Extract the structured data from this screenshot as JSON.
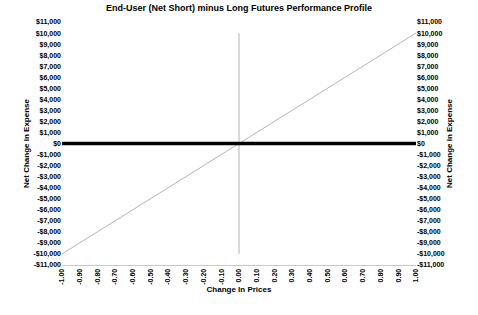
{
  "chart_data": {
    "type": "line",
    "title": "End-User (Net Short) minus Long Futures Performance Profile",
    "x_label": "Change In Prices",
    "y_label": "Net Change In Expense",
    "y2_label": "Net Change In Expense",
    "x": [
      -1.0,
      -0.9,
      -0.8,
      -0.7,
      -0.6,
      -0.5,
      -0.4,
      -0.3,
      -0.2,
      -0.1,
      0.0,
      0.1,
      0.2,
      0.3,
      0.4,
      0.5,
      0.6,
      0.7,
      0.8,
      0.9,
      1.0
    ],
    "series": [
      {
        "color": "#b4b4b4",
        "line_style": "solid",
        "values": [
          -10000,
          -9000,
          -8000,
          -7000,
          -6000,
          -5000,
          -4000,
          -3000,
          -2000,
          -1000,
          0,
          1000,
          2000,
          3000,
          4000,
          5000,
          6000,
          7000,
          8000,
          9000,
          10000
        ]
      },
      {
        "color": "#b4b4b4",
        "line_style": "solid",
        "x": [
          0.0,
          0.0
        ],
        "values": [
          -10000,
          10000
        ]
      },
      {
        "color": "#000000",
        "line_style": "thick",
        "axis": "y2",
        "values": [
          0,
          0,
          0,
          0,
          0,
          0,
          0,
          0,
          0,
          0,
          0,
          0,
          0,
          0,
          0,
          0,
          0,
          0,
          0,
          0,
          0
        ]
      }
    ],
    "xlim": [
      -1.0,
      1.0
    ],
    "xticks": [
      {
        "value": -1.0,
        "label": "-1.00"
      },
      {
        "value": -0.9,
        "label": "-0.90"
      },
      {
        "value": -0.8,
        "label": "-0.80"
      },
      {
        "value": -0.7,
        "label": "-0.70"
      },
      {
        "value": -0.6,
        "label": "-0.60"
      },
      {
        "value": -0.5,
        "label": "-0.50"
      },
      {
        "value": -0.4,
        "label": "-0.40"
      },
      {
        "value": -0.3,
        "label": "-0.30"
      },
      {
        "value": -0.2,
        "label": "-0.20"
      },
      {
        "value": -0.1,
        "label": "-0.10"
      },
      {
        "value": 0.0,
        "label": "0.00"
      },
      {
        "value": 0.1,
        "label": "0.10"
      },
      {
        "value": 0.2,
        "label": "0.20"
      },
      {
        "value": 0.3,
        "label": "0.30"
      },
      {
        "value": 0.4,
        "label": "0.40"
      },
      {
        "value": 0.5,
        "label": "0.50"
      },
      {
        "value": 0.6,
        "label": "0.60"
      },
      {
        "value": 0.7,
        "label": "0.70"
      },
      {
        "value": 0.8,
        "label": "0.80"
      },
      {
        "value": 0.9,
        "label": "0.90"
      },
      {
        "value": 1.0,
        "label": "1.00"
      }
    ],
    "ylim": [
      -11000,
      11000
    ],
    "yticks": [
      {
        "value": -11000,
        "label": "-$11,000"
      },
      {
        "value": -10000,
        "label": "-$10,000"
      },
      {
        "value": -9000,
        "label": "-$9,000"
      },
      {
        "value": -8000,
        "label": "-$8,000"
      },
      {
        "value": -7000,
        "label": "-$7,000"
      },
      {
        "value": -6000,
        "label": "-$6,000"
      },
      {
        "value": -5000,
        "label": "-$5,000"
      },
      {
        "value": -4000,
        "label": "-$4,000"
      },
      {
        "value": -3000,
        "label": "-$3,000"
      },
      {
        "value": -2000,
        "label": "-$2,000"
      },
      {
        "value": -1000,
        "label": "-$1,000"
      },
      {
        "value": 0,
        "label": "$0"
      },
      {
        "value": 1000,
        "label": "$1,000"
      },
      {
        "value": 2000,
        "label": "$2,000"
      },
      {
        "value": 3000,
        "label": "$3,000"
      },
      {
        "value": 4000,
        "label": "$4,000"
      },
      {
        "value": 5000,
        "label": "$5,000"
      },
      {
        "value": 6000,
        "label": "$6,000"
      },
      {
        "value": 7000,
        "label": "$7,000"
      },
      {
        "value": 8000,
        "label": "$8,000"
      },
      {
        "value": 9000,
        "label": "$9,000"
      },
      {
        "value": 10000,
        "label": "$10,000"
      },
      {
        "value": 11000,
        "label": "$11,000"
      }
    ],
    "y2lim": [
      -11000,
      11000
    ],
    "y2ticks": [
      {
        "value": -11000,
        "label": "-$11,000"
      },
      {
        "value": -10000,
        "label": "-$10,000"
      },
      {
        "value": -9000,
        "label": "-$9,000"
      },
      {
        "value": -8000,
        "label": "-$8,000"
      },
      {
        "value": -7000,
        "label": "-$7,000"
      },
      {
        "value": -6000,
        "label": "-$6,000"
      },
      {
        "value": -5000,
        "label": "-$5,000"
      },
      {
        "value": -4000,
        "label": "-$4,000"
      },
      {
        "value": -3000,
        "label": "-$3,000"
      },
      {
        "value": -2000,
        "label": "-$2,000"
      },
      {
        "value": -1000,
        "label": "-$1,000"
      },
      {
        "value": 0,
        "label": "$0"
      },
      {
        "value": 1000,
        "label": "$1,000"
      },
      {
        "value": 2000,
        "label": "$2,000"
      },
      {
        "value": 3000,
        "label": "$3,000"
      },
      {
        "value": 4000,
        "label": "$4,000"
      },
      {
        "value": 5000,
        "label": "$5,000"
      },
      {
        "value": 6000,
        "label": "$6,000"
      },
      {
        "value": 7000,
        "label": "$7,000"
      },
      {
        "value": 8000,
        "label": "$8,000"
      },
      {
        "value": 9000,
        "label": "$9,000"
      },
      {
        "value": 10000,
        "label": "$10,000"
      },
      {
        "value": 11000,
        "label": "$11,000"
      }
    ],
    "grid": false
  }
}
